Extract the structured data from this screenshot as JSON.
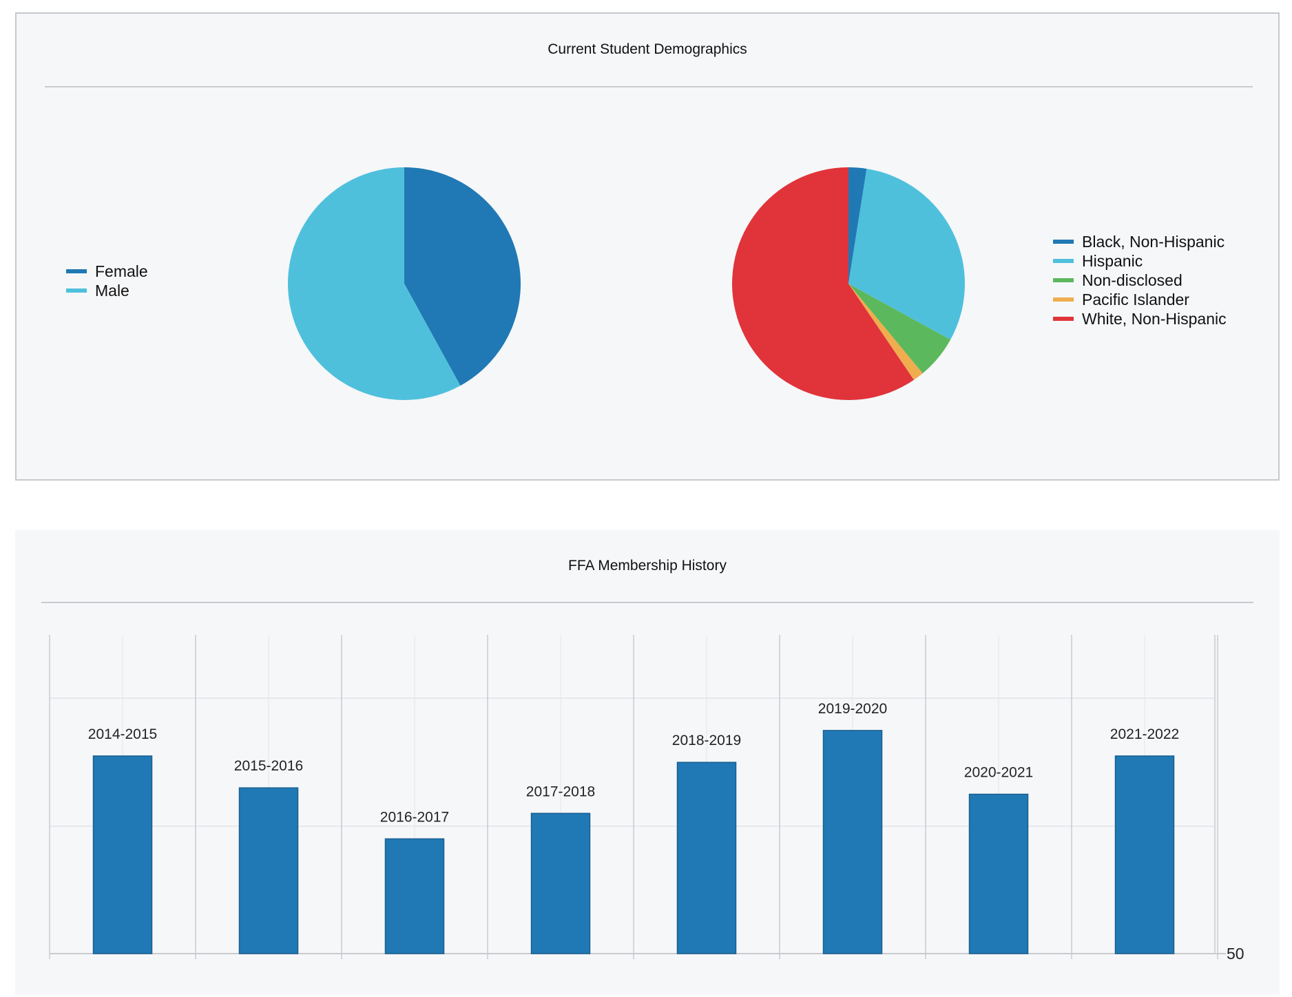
{
  "demographics_panel": {
    "title": "Current Student Demographics"
  },
  "ffa_panel": {
    "title": "FFA Membership History"
  },
  "chart_data": [
    {
      "type": "pie",
      "labels": [
        "Female",
        "Male"
      ],
      "values": [
        42,
        58
      ],
      "colors": [
        "#2079b4",
        "#4fc0dc"
      ],
      "legend_position": "left"
    },
    {
      "type": "pie",
      "labels": [
        "Black, Non-Hispanic",
        "Hispanic",
        "Non-disclosed",
        "Pacific Islander",
        "White, Non-Hispanic"
      ],
      "values": [
        2.5,
        30.5,
        6,
        1.5,
        59.5
      ],
      "colors": [
        "#2079b4",
        "#4fc0dc",
        "#5cb85c",
        "#f0ad4e",
        "#e0343a"
      ],
      "legend_position": "right"
    },
    {
      "type": "bar",
      "categories": [
        "2014-2015",
        "2015-2016",
        "2016-2017",
        "2017-2018",
        "2018-2019",
        "2019-2020",
        "2020-2021",
        "2021-2022"
      ],
      "values": [
        81,
        76,
        68,
        72,
        80,
        85,
        75,
        81
      ],
      "color": "#2079b4",
      "y_tick_labels": [
        "50"
      ],
      "ylim": [
        50,
        100
      ],
      "grid": true,
      "data_labels": "category"
    }
  ]
}
